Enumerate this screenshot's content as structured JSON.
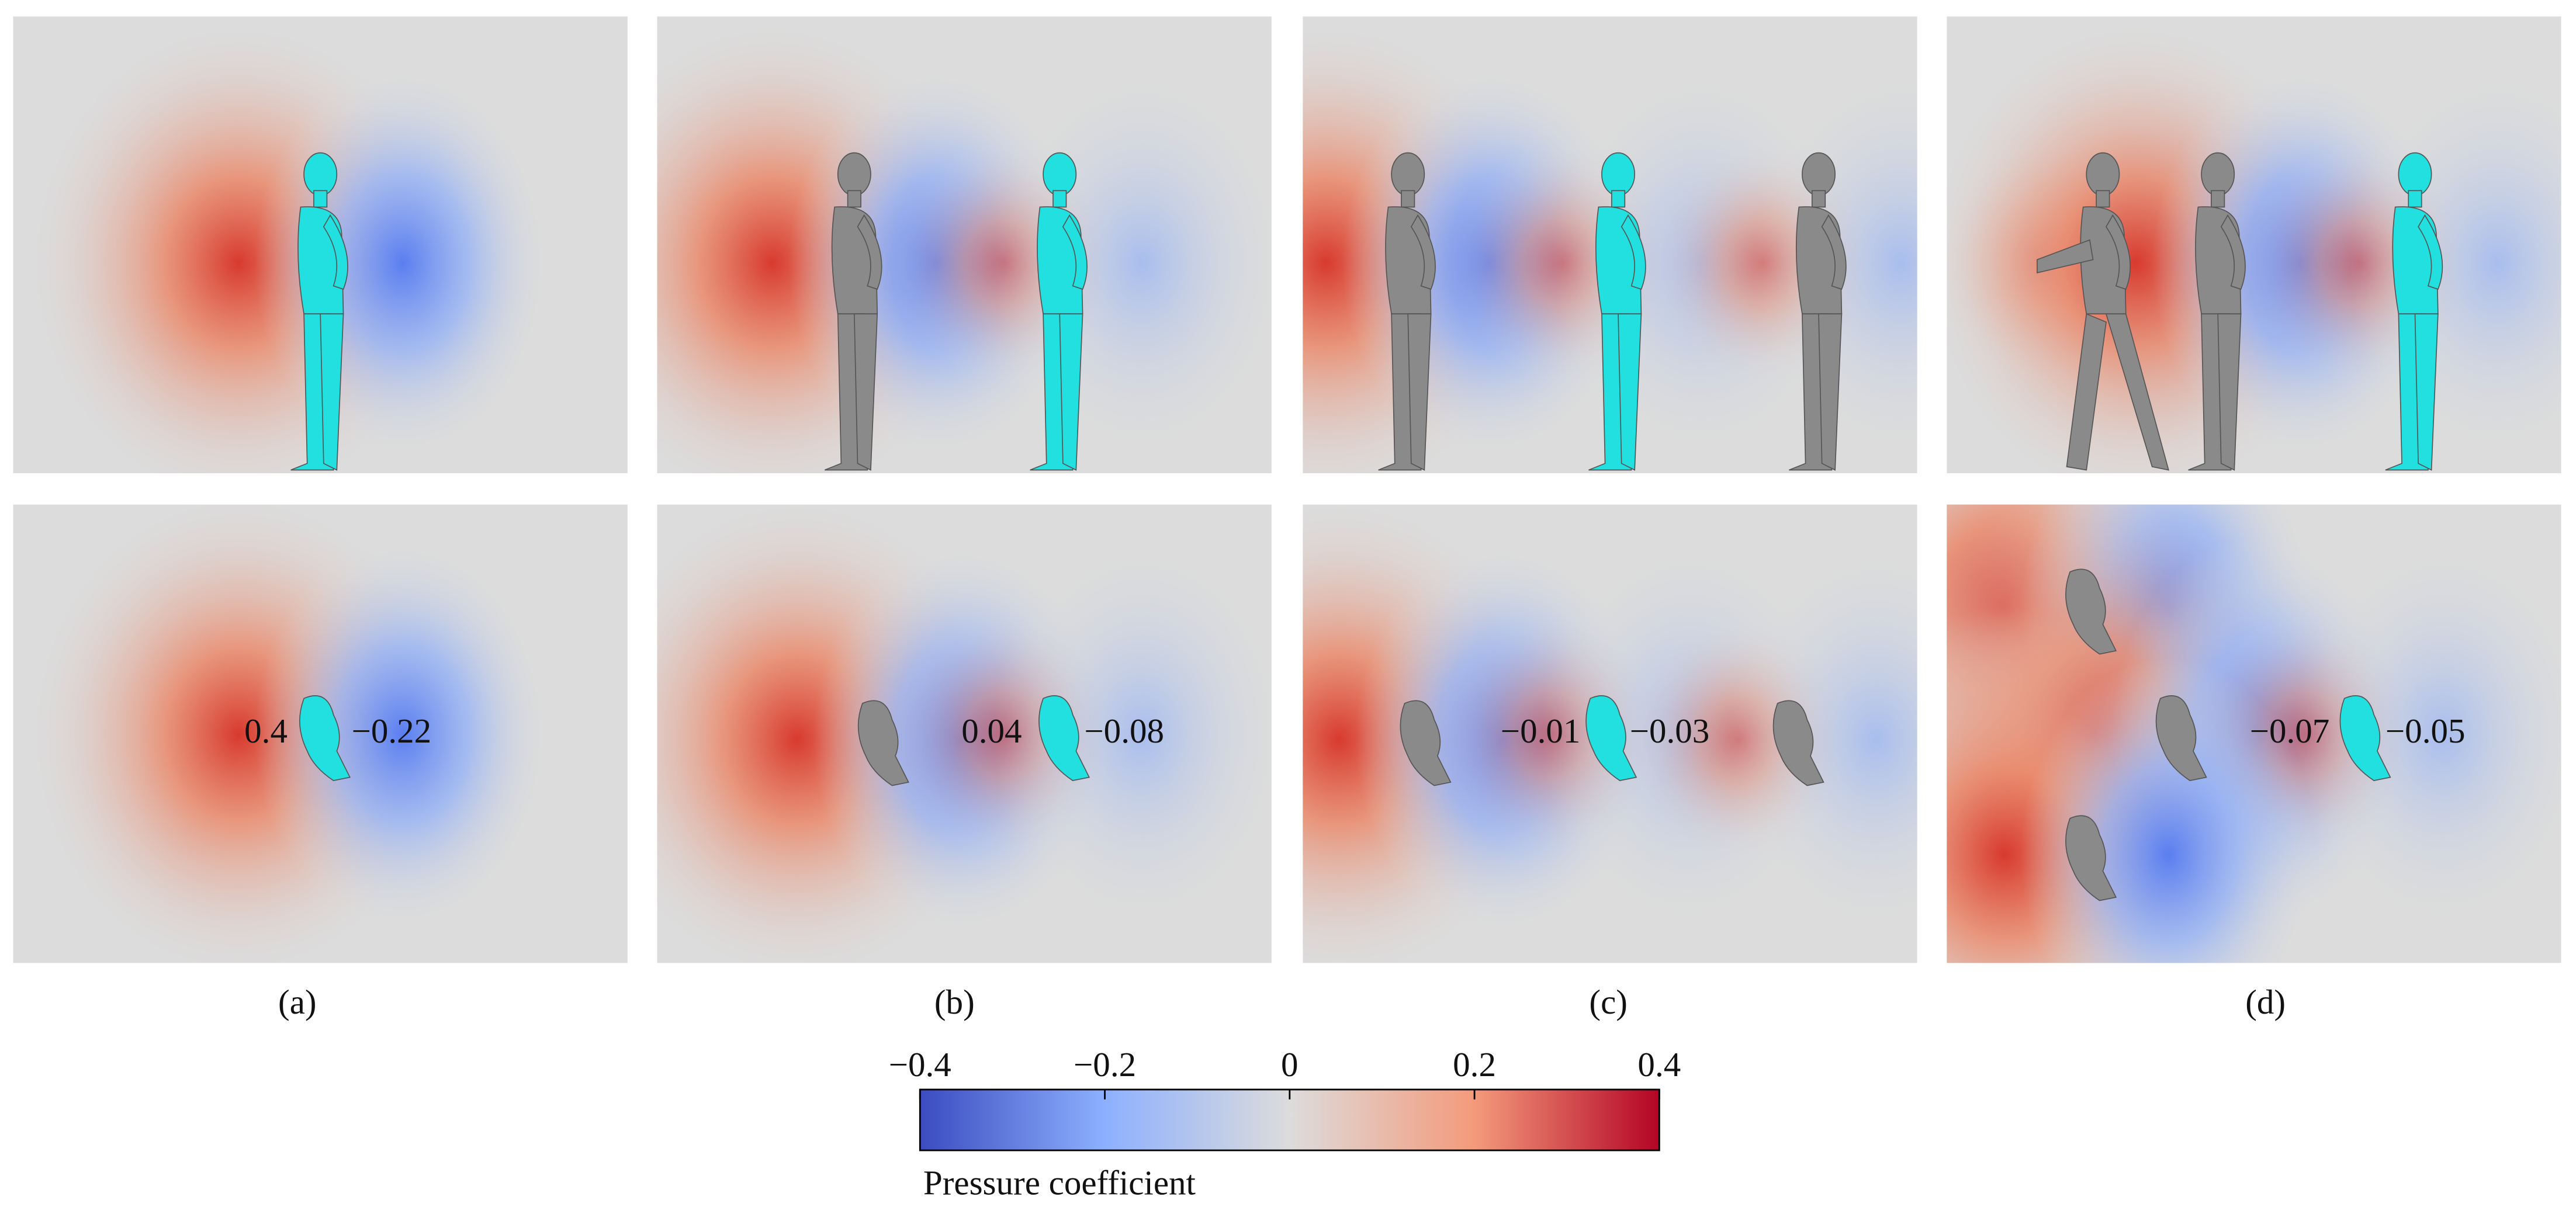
{
  "panels": [
    {
      "label": "(a)",
      "annotations": [
        "0.4",
        "−0.22"
      ]
    },
    {
      "label": "(b)",
      "annotations": [
        "0.04",
        "−0.08"
      ]
    },
    {
      "label": "(c)",
      "annotations": [
        "−0.01",
        "−0.03"
      ]
    },
    {
      "label": "(d)",
      "annotations": [
        "−0.07",
        "−0.05"
      ]
    }
  ],
  "colorbar": {
    "label": "Pressure coefficient",
    "range": [
      -0.4,
      0.4
    ],
    "ticks": [
      {
        "value": -0.4,
        "label": "−0.4"
      },
      {
        "value": -0.2,
        "label": "−0.2"
      },
      0,
      0.2,
      0.4
    ]
  }
}
